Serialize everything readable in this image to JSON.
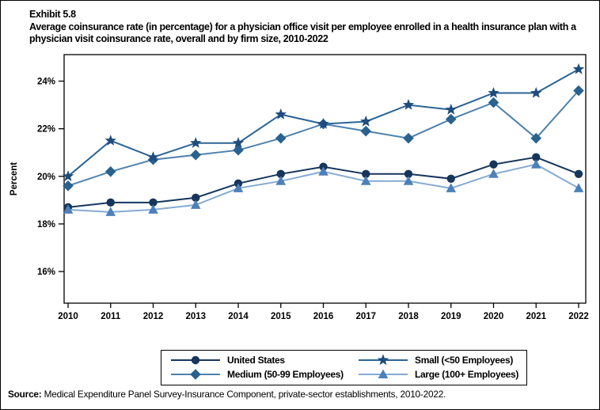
{
  "exhibit": {
    "label": "Exhibit 5.8",
    "title": "Average coinsurance rate (in percentage) for a physician office visit per employee enrolled in a health insurance plan with a physician visit coinsurance rate, overall and by firm size, 2010-2022"
  },
  "source": {
    "prefix": "Source:",
    "text": " Medical Expenditure Panel Survey-Insurance Component, private-sector establishments, 2010-2022."
  },
  "chart_data": {
    "type": "line",
    "ylabel": "Percent",
    "xlabel": "",
    "x": [
      2010,
      2011,
      2012,
      2013,
      2014,
      2015,
      2016,
      2017,
      2018,
      2019,
      2020,
      2021,
      2022
    ],
    "yticks": [
      16,
      18,
      20,
      22,
      24
    ],
    "ytick_labels": [
      "16%",
      "18%",
      "20%",
      "22%",
      "24%"
    ],
    "ylim": [
      14.7,
      25.1
    ],
    "grid": false,
    "legend_position": "bottom",
    "series": [
      {
        "name": "United States",
        "marker": "circle",
        "line_color": "#16365C",
        "marker_color": "#16365C",
        "values": [
          18.7,
          18.9,
          18.9,
          19.1,
          19.7,
          20.1,
          20.4,
          20.1,
          20.1,
          19.9,
          20.5,
          20.8,
          20.1
        ]
      },
      {
        "name": "Small (<50 Employees)",
        "marker": "star",
        "line_color": "#2B6496",
        "marker_color": "#1E4C7C",
        "values": [
          20.0,
          21.5,
          20.8,
          21.4,
          21.4,
          22.6,
          22.2,
          22.3,
          23.0,
          22.8,
          23.5,
          23.5,
          24.5
        ]
      },
      {
        "name": "Medium (50-99 Employees)",
        "marker": "diamond",
        "line_color": "#4E81AD",
        "marker_color": "#2A628F",
        "values": [
          19.6,
          20.2,
          20.7,
          20.9,
          21.1,
          21.6,
          22.2,
          21.9,
          21.6,
          22.4,
          23.1,
          21.6,
          23.6
        ]
      },
      {
        "name": "Large (100+ Employees)",
        "marker": "triangle",
        "line_color": "#85ABD3",
        "marker_color": "#4D80B8",
        "values": [
          18.6,
          18.5,
          18.6,
          18.8,
          19.5,
          19.8,
          20.2,
          19.8,
          19.8,
          19.5,
          20.1,
          20.5,
          19.5
        ]
      }
    ]
  },
  "legend_order": [
    0,
    1,
    2,
    3
  ]
}
